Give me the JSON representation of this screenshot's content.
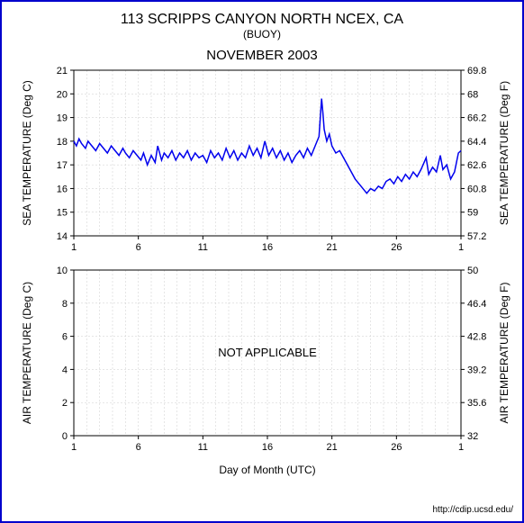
{
  "title": "113 SCRIPPS CANYON NORTH NCEX, CA",
  "subtitle": "(BUOY)",
  "period": "NOVEMBER 2003",
  "xlabel": "Day of Month (UTC)",
  "footer_url": "http://cdip.ucsd.edu/",
  "colors": {
    "border": "#0000cc",
    "axis": "#000000",
    "grid": "#cccccc",
    "series": "#0000ee",
    "text": "#000000",
    "bg": "#ffffff"
  },
  "fonts": {
    "title_size": 16,
    "subtitle_size": 12,
    "period_size": 15,
    "axis_label_size": 12,
    "tick_size": 11,
    "footer_size": 10
  },
  "panels": [
    {
      "id": "sea",
      "type": "line",
      "y_left_label": "SEA TEMPERATURE (Deg C)",
      "y_right_label": "SEA TEMPERATURE (Deg F)",
      "x_ticks": [
        1,
        6,
        11,
        16,
        21,
        26,
        1
      ],
      "y_left": {
        "min": 14,
        "max": 21,
        "ticks": [
          14,
          15,
          16,
          17,
          18,
          19,
          20,
          21
        ]
      },
      "y_right": {
        "ticks": [
          57.2,
          59,
          60.8,
          62.6,
          64.4,
          66.2,
          68,
          69.8
        ]
      },
      "overlay_text": null,
      "series": {
        "color": "#0000ee",
        "width": 1.5,
        "data": [
          [
            1.0,
            18.0
          ],
          [
            1.2,
            17.8
          ],
          [
            1.4,
            18.1
          ],
          [
            1.6,
            17.9
          ],
          [
            1.9,
            17.7
          ],
          [
            2.1,
            18.0
          ],
          [
            2.4,
            17.8
          ],
          [
            2.7,
            17.6
          ],
          [
            3.0,
            17.9
          ],
          [
            3.3,
            17.7
          ],
          [
            3.6,
            17.5
          ],
          [
            3.9,
            17.8
          ],
          [
            4.2,
            17.6
          ],
          [
            4.5,
            17.4
          ],
          [
            4.8,
            17.7
          ],
          [
            5.0,
            17.5
          ],
          [
            5.3,
            17.3
          ],
          [
            5.6,
            17.6
          ],
          [
            5.9,
            17.4
          ],
          [
            6.2,
            17.2
          ],
          [
            6.4,
            17.5
          ],
          [
            6.7,
            17.0
          ],
          [
            7.0,
            17.4
          ],
          [
            7.3,
            17.1
          ],
          [
            7.5,
            17.8
          ],
          [
            7.8,
            17.2
          ],
          [
            8.0,
            17.5
          ],
          [
            8.3,
            17.3
          ],
          [
            8.6,
            17.6
          ],
          [
            8.9,
            17.2
          ],
          [
            9.2,
            17.5
          ],
          [
            9.5,
            17.3
          ],
          [
            9.8,
            17.6
          ],
          [
            10.1,
            17.2
          ],
          [
            10.4,
            17.5
          ],
          [
            10.7,
            17.3
          ],
          [
            11.0,
            17.4
          ],
          [
            11.3,
            17.1
          ],
          [
            11.6,
            17.6
          ],
          [
            11.9,
            17.3
          ],
          [
            12.2,
            17.5
          ],
          [
            12.5,
            17.2
          ],
          [
            12.8,
            17.7
          ],
          [
            13.1,
            17.3
          ],
          [
            13.4,
            17.6
          ],
          [
            13.7,
            17.2
          ],
          [
            14.0,
            17.5
          ],
          [
            14.3,
            17.3
          ],
          [
            14.6,
            17.8
          ],
          [
            14.9,
            17.4
          ],
          [
            15.2,
            17.7
          ],
          [
            15.5,
            17.3
          ],
          [
            15.8,
            18.0
          ],
          [
            16.1,
            17.4
          ],
          [
            16.4,
            17.7
          ],
          [
            16.7,
            17.3
          ],
          [
            17.0,
            17.6
          ],
          [
            17.3,
            17.2
          ],
          [
            17.6,
            17.5
          ],
          [
            17.9,
            17.1
          ],
          [
            18.2,
            17.4
          ],
          [
            18.5,
            17.6
          ],
          [
            18.8,
            17.3
          ],
          [
            19.1,
            17.7
          ],
          [
            19.4,
            17.4
          ],
          [
            19.7,
            17.8
          ],
          [
            20.0,
            18.2
          ],
          [
            20.1,
            19.0
          ],
          [
            20.2,
            19.8
          ],
          [
            20.3,
            19.2
          ],
          [
            20.4,
            18.5
          ],
          [
            20.6,
            18.0
          ],
          [
            20.8,
            18.3
          ],
          [
            21.0,
            17.8
          ],
          [
            21.3,
            17.5
          ],
          [
            21.6,
            17.6
          ],
          [
            21.9,
            17.3
          ],
          [
            22.2,
            17.0
          ],
          [
            22.5,
            16.7
          ],
          [
            22.8,
            16.4
          ],
          [
            23.1,
            16.2
          ],
          [
            23.4,
            16.0
          ],
          [
            23.7,
            15.8
          ],
          [
            24.0,
            16.0
          ],
          [
            24.3,
            15.9
          ],
          [
            24.6,
            16.1
          ],
          [
            24.9,
            16.0
          ],
          [
            25.2,
            16.3
          ],
          [
            25.5,
            16.4
          ],
          [
            25.8,
            16.2
          ],
          [
            26.1,
            16.5
          ],
          [
            26.4,
            16.3
          ],
          [
            26.7,
            16.6
          ],
          [
            27.0,
            16.4
          ],
          [
            27.3,
            16.7
          ],
          [
            27.6,
            16.5
          ],
          [
            27.9,
            16.8
          ],
          [
            28.3,
            17.3
          ],
          [
            28.5,
            16.6
          ],
          [
            28.8,
            16.9
          ],
          [
            29.1,
            16.7
          ],
          [
            29.4,
            17.4
          ],
          [
            29.6,
            16.8
          ],
          [
            29.9,
            17.0
          ],
          [
            30.2,
            16.4
          ],
          [
            30.5,
            16.7
          ],
          [
            30.8,
            17.5
          ],
          [
            31.0,
            17.6
          ]
        ]
      }
    },
    {
      "id": "air",
      "type": "line",
      "y_left_label": "AIR TEMPERATURE (Deg C)",
      "y_right_label": "AIR TEMPERATURE (Deg F)",
      "x_ticks": [
        1,
        6,
        11,
        16,
        21,
        26,
        1
      ],
      "y_left": {
        "min": 0,
        "max": 10,
        "ticks": [
          0,
          2,
          4,
          6,
          8,
          10
        ]
      },
      "y_right": {
        "ticks": [
          32,
          35.6,
          39.2,
          42.8,
          46.4,
          50
        ]
      },
      "overlay_text": "NOT APPLICABLE",
      "series": null
    }
  ]
}
